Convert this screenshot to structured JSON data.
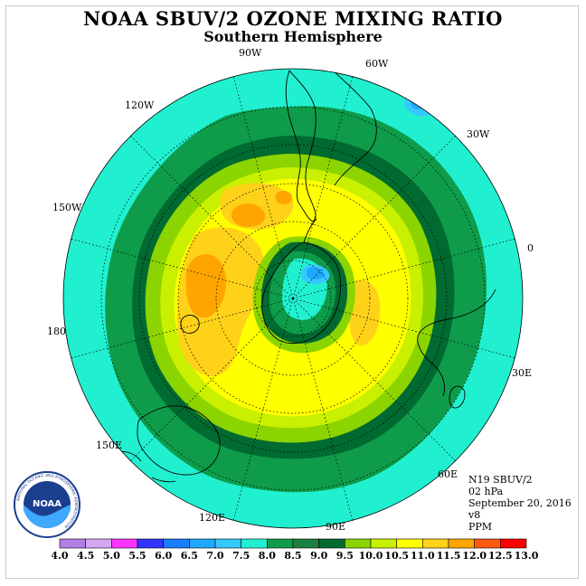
{
  "title": "NOAA SBUV/2 OZONE MIXING RATIO",
  "subtitle": "Southern Hemisphere",
  "lon_labels": {
    "w90": "90W",
    "w60": "60W",
    "w30": "30W",
    "e0": "0",
    "w120": "120W",
    "w150": "150W",
    "d180": "180",
    "e30": "30E",
    "e60": "60E",
    "e90": "90E",
    "e120": "120E",
    "e150": "150E"
  },
  "info": {
    "instrument": "N19 SBUV/2",
    "pressure": "02 hPa",
    "date": "September 20, 2016",
    "version": "v8",
    "units": "PPM"
  },
  "logo": {
    "text": "NOAA",
    "ring_text": "NATIONAL OCEANIC AND ATMOSPHERIC ADMINISTRATION"
  },
  "colorbar": {
    "levels": [
      "4.0",
      "4.5",
      "5.0",
      "5.5",
      "6.0",
      "6.5",
      "7.0",
      "7.5",
      "8.0",
      "8.5",
      "9.0",
      "9.5",
      "10.0",
      "10.5",
      "11.0",
      "11.5",
      "12.0",
      "12.5",
      "13.0"
    ],
    "colors": [
      "#b07fe8",
      "#d7a6f2",
      "#ff33ff",
      "#3333ff",
      "#1a7dff",
      "#1fa8ff",
      "#36c9ff",
      "#20f0d0",
      "#0e9c4a",
      "#1a8040",
      "#006a30",
      "#8cd400",
      "#c8f000",
      "#ffff00",
      "#ffd21a",
      "#ffa500",
      "#ff5a10",
      "#ff0000",
      "#8b5a2b"
    ]
  },
  "colors": {
    "outer": "#20f0d0",
    "green_mid": "#0e9c4a",
    "green_dark": "#006a30",
    "yellow_green": "#8cd400",
    "lime": "#c8f000",
    "yellow": "#ffff00",
    "orange_light": "#ffd21a",
    "orange": "#ffa500",
    "sky": "#36c9ff",
    "blue": "#1fa8ff"
  }
}
